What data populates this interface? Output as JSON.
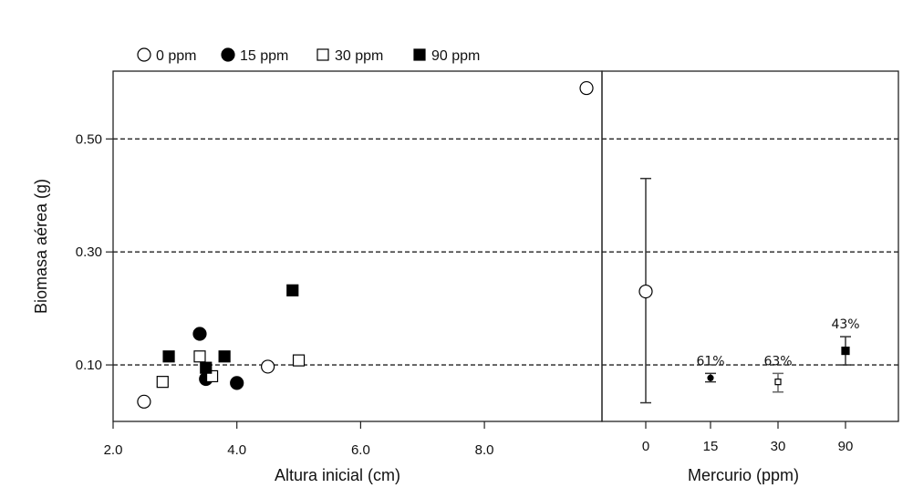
{
  "chart_data": [
    {
      "type": "scatter",
      "xlabel": "Altura inicial (cm)",
      "ylabel": "Biomasa aérea (g)",
      "xlim": [
        2.0,
        9.9
      ],
      "ylim": [
        0.0,
        0.62
      ],
      "xticks": [
        "2.0",
        "4.0",
        "6.0",
        "8.0"
      ],
      "yticks": [
        "0.10",
        "0.30",
        "0.50"
      ],
      "ytick_values": [
        0.1,
        0.3,
        0.5
      ],
      "grid": "dashed horizontal at y ticks",
      "legend": {
        "placement": "top-left",
        "entries": [
          {
            "label": "0 ppm",
            "marker": "open-circle"
          },
          {
            "label": "15 ppm",
            "marker": "filled-circle"
          },
          {
            "label": "30 ppm",
            "marker": "open-square"
          },
          {
            "label": "90 ppm",
            "marker": "filled-square"
          }
        ]
      },
      "series": [
        {
          "name": "0 ppm",
          "marker": "open-circle",
          "points": [
            [
              2.5,
              0.035
            ],
            [
              4.5,
              0.097
            ],
            [
              9.65,
              0.59
            ]
          ]
        },
        {
          "name": "15 ppm",
          "marker": "filled-circle",
          "points": [
            [
              3.4,
              0.155
            ],
            [
              3.5,
              0.075
            ],
            [
              4.0,
              0.068
            ]
          ]
        },
        {
          "name": "30 ppm",
          "marker": "open-square",
          "points": [
            [
              2.8,
              0.07
            ],
            [
              3.4,
              0.115
            ],
            [
              3.6,
              0.08
            ],
            [
              5.0,
              0.108
            ]
          ]
        },
        {
          "name": "90 ppm",
          "marker": "filled-square",
          "points": [
            [
              2.9,
              0.115
            ],
            [
              3.5,
              0.095
            ],
            [
              3.8,
              0.115
            ],
            [
              4.9,
              0.232
            ]
          ]
        }
      ]
    },
    {
      "type": "scatter",
      "xlabel": "Mercurio (ppm)",
      "ylim": [
        0.0,
        0.62
      ],
      "categories": [
        "0",
        "15",
        "30",
        "90"
      ],
      "series": [
        {
          "marker_by_category": [
            "open-circle",
            "filled-circle",
            "open-square",
            "filled-square"
          ],
          "mean": [
            0.23,
            0.077,
            0.07,
            0.125
          ],
          "err_low": [
            0.033,
            0.07,
            0.052,
            0.1
          ],
          "err_high": [
            0.43,
            0.085,
            0.085,
            0.15
          ],
          "labels": [
            "",
            "61%",
            "63%",
            "43%"
          ]
        }
      ]
    }
  ]
}
